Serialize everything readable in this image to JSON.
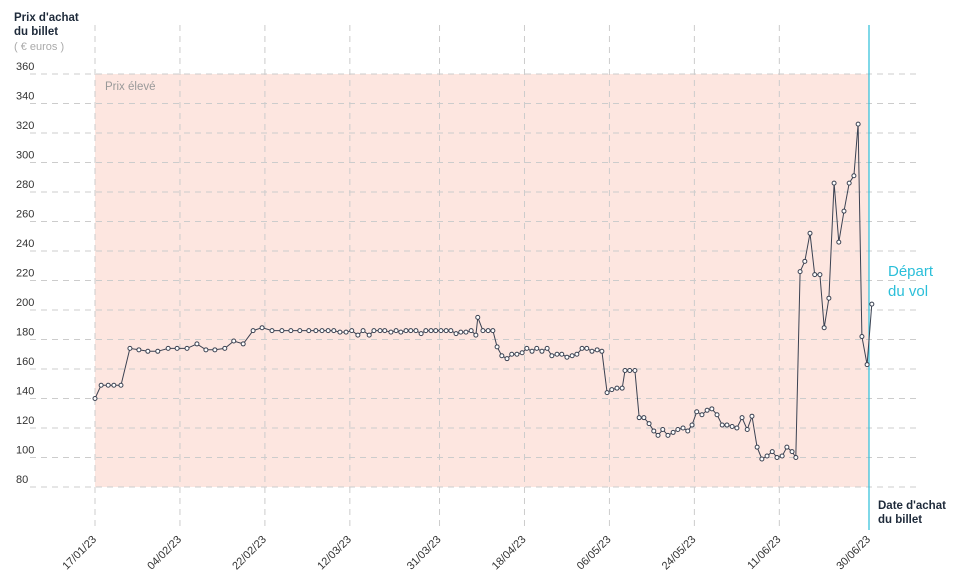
{
  "chart_data": {
    "type": "line",
    "y_axis_title": "Prix d'achat du billet",
    "y_axis_unit": "( € euros )",
    "x_axis_title": "Date d'achat du billet",
    "color": "#3b4252",
    "zone": {
      "label": "Prix élevé",
      "ylim": [
        80,
        360
      ],
      "color": "#fde6e0"
    },
    "marker": {
      "label": "Départ du vol",
      "x": 164,
      "color": "#2bbfd9"
    },
    "grid": true,
    "xlim": [
      0,
      164
    ],
    "ylim": [
      80,
      360
    ],
    "yticks": [
      80,
      100,
      120,
      140,
      160,
      180,
      200,
      220,
      240,
      260,
      280,
      300,
      320,
      340,
      360
    ],
    "xticks": [
      {
        "value": 0,
        "label": "17/01/23"
      },
      {
        "value": 18,
        "label": "04/02/23"
      },
      {
        "value": 36,
        "label": "22/02/23"
      },
      {
        "value": 54,
        "label": "12/03/23"
      },
      {
        "value": 73,
        "label": "31/03/23"
      },
      {
        "value": 91,
        "label": "18/04/23"
      },
      {
        "value": 109,
        "label": "06/05/23"
      },
      {
        "value": 127,
        "label": "24/05/23"
      },
      {
        "value": 145,
        "label": "11/06/23"
      },
      {
        "value": 164,
        "label": "30/06/23"
      }
    ],
    "x": [
      0,
      1.3,
      2.8,
      4.0,
      5.5,
      7.4,
      9.3,
      11.2,
      13.3,
      15.5,
      17.4,
      19.5,
      21.6,
      23.5,
      25.4,
      27.5,
      29.4,
      31.4,
      33.5,
      35.4,
      37.5,
      39.6,
      41.5,
      43.4,
      45.3,
      46.8,
      48.1,
      49.4,
      50.6,
      51.9,
      53.2,
      54.4,
      55.7,
      56.8,
      58.1,
      59.1,
      60.4,
      61.4,
      62.7,
      63.8,
      64.8,
      65.9,
      66.9,
      68.0,
      69.1,
      70.1,
      71.2,
      72.2,
      73.3,
      74.4,
      75.4,
      76.5,
      77.5,
      78.6,
      79.7,
      80.7,
      81.1,
      82.2,
      83.3,
      84.3,
      85.2,
      86.2,
      87.3,
      88.3,
      89.4,
      90.5,
      91.5,
      92.6,
      93.6,
      94.7,
      95.8,
      96.8,
      97.9,
      98.9,
      100.0,
      101.1,
      102.1,
      103.2,
      104.2,
      105.3,
      106.4,
      107.4,
      108.5,
      109.5,
      110.6,
      111.7,
      112.3,
      113.3,
      114.4,
      115.3,
      116.3,
      117.4,
      118.4,
      119.3,
      120.3,
      121.4,
      122.5,
      123.5,
      124.6,
      125.6,
      126.5,
      127.5,
      128.6,
      129.7,
      130.7,
      131.8,
      132.9,
      133.9,
      135.0,
      136.0,
      137.1,
      138.2,
      139.2,
      140.3,
      141.3,
      142.4,
      143.5,
      144.5,
      145.6,
      146.6,
      147.7,
      148.5,
      149.4,
      150.4,
      151.5,
      152.5,
      153.6,
      154.5,
      155.5,
      156.6,
      157.6,
      158.7,
      159.8,
      160.8,
      161.7,
      162.5,
      163.6,
      164.6
    ],
    "values": [
      140,
      149,
      149,
      149,
      149,
      174,
      173,
      172,
      172,
      174,
      174,
      174,
      177,
      173,
      173,
      174,
      179,
      177,
      186,
      188,
      186,
      186,
      186,
      186,
      186,
      186,
      186,
      186,
      186,
      185,
      185,
      186,
      183,
      186,
      183,
      186,
      186,
      186,
      185,
      186,
      185,
      186,
      186,
      186,
      184,
      186,
      186,
      186,
      186,
      186,
      186,
      184,
      185,
      185,
      186,
      183,
      195,
      186,
      186,
      186,
      175,
      169,
      167,
      170,
      170,
      171,
      174,
      172,
      174,
      172,
      174,
      169,
      170,
      170,
      168,
      169,
      170,
      174,
      174,
      172,
      173,
      172,
      144,
      146,
      147,
      147,
      159,
      159,
      159,
      127,
      127,
      123,
      118,
      115,
      119,
      115,
      117,
      119,
      120,
      118,
      122,
      131,
      129,
      132,
      133,
      129,
      122,
      122,
      121,
      120,
      127,
      119,
      128,
      107,
      99,
      101,
      104,
      100,
      101,
      107,
      104,
      100,
      226,
      233,
      252,
      224,
      224,
      188,
      208,
      286,
      246,
      267,
      286,
      291,
      326,
      182,
      163,
      204
    ]
  }
}
